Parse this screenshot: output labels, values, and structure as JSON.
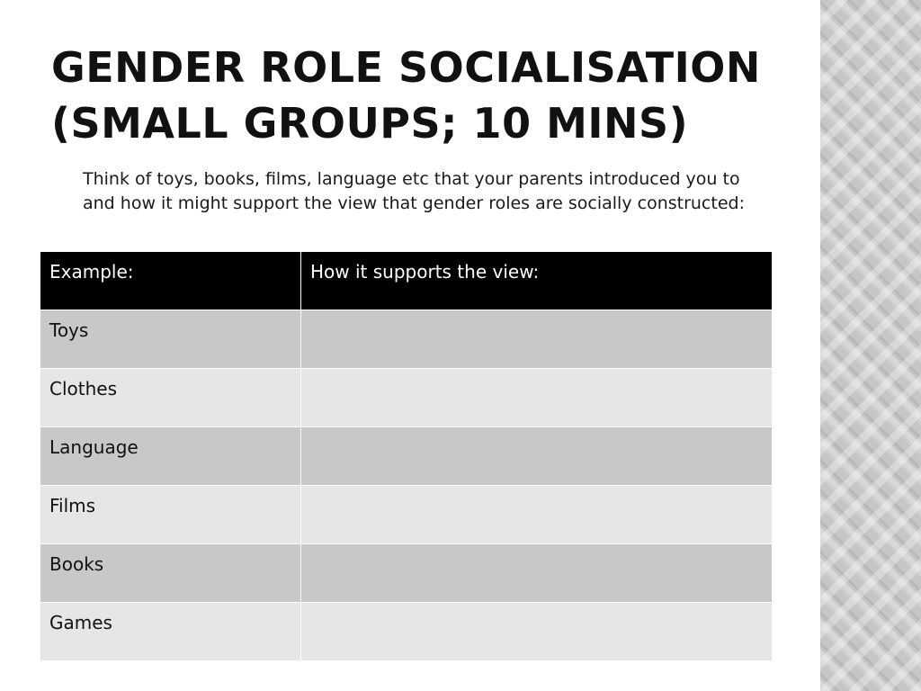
{
  "slide": {
    "title_lines": [
      "Gender Role Socialisation",
      "(small groups; 10 mins)"
    ],
    "instructions": "Think of toys, books, films, language etc that your parents introduced you to and how it might support the view that gender roles are socially constructed:"
  },
  "table": {
    "headers": [
      "Example:",
      "How it supports the view:"
    ],
    "rows": [
      {
        "example": "Toys",
        "support": ""
      },
      {
        "example": "Clothes",
        "support": ""
      },
      {
        "example": "Language",
        "support": ""
      },
      {
        "example": "Films",
        "support": ""
      },
      {
        "example": "Books",
        "support": ""
      },
      {
        "example": "Games",
        "support": ""
      }
    ]
  },
  "colors": {
    "header_bg": "#000000",
    "header_text": "#ffffff",
    "row_dark": "#c8c8c8",
    "row_light": "#e6e6e6",
    "side_panel": "#c6c6c6"
  }
}
